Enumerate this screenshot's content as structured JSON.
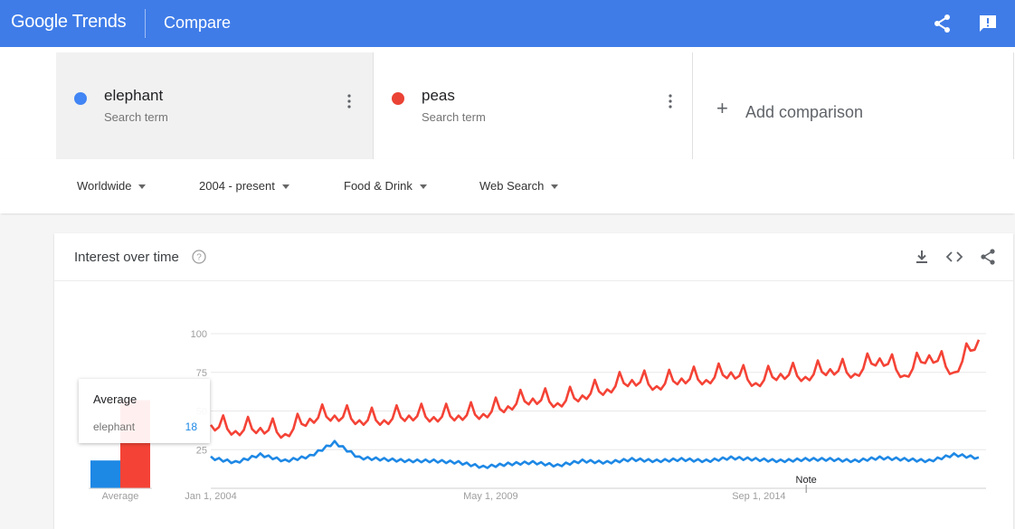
{
  "header": {
    "logo": "Google Trends",
    "title": "Compare",
    "share_icon": "share-icon",
    "feedback_icon": "feedback-icon"
  },
  "terms": [
    {
      "name": "elephant",
      "subtitle": "Search term",
      "color": "#4285f4"
    },
    {
      "name": "peas",
      "subtitle": "Search term",
      "color": "#ea4335"
    }
  ],
  "add_comparison": {
    "label": "Add comparison",
    "icon": "plus-icon"
  },
  "filters": {
    "region": "Worldwide",
    "time": "2004 - present",
    "category": "Food & Drink",
    "search_type": "Web Search"
  },
  "card": {
    "title": "Interest over time",
    "icons": [
      "help-icon",
      "download-icon",
      "embed-icon",
      "share-icon"
    ]
  },
  "tooltip": {
    "title": "Average",
    "term": "elephant",
    "value": "18"
  },
  "chart_data": {
    "type": "line",
    "yticks": [
      "100",
      "75",
      "50",
      "25"
    ],
    "xticks": [
      "Jan 1, 2004",
      "May 1, 2009",
      "Sep 1, 2014"
    ],
    "ylim": [
      0,
      100
    ],
    "grid": true,
    "annotation": "Note",
    "average_bars": {
      "label": "Average",
      "values": [
        {
          "name": "elephant",
          "value": 18,
          "color": "#1e88e5"
        },
        {
          "name": "peas",
          "value": 57,
          "color": "#f44336"
        }
      ]
    },
    "x": [
      "2004-01",
      "2004-07",
      "2005-01",
      "2005-07",
      "2006-01",
      "2006-07",
      "2007-01",
      "2007-07",
      "2008-01",
      "2008-07",
      "2009-01",
      "2009-07",
      "2010-01",
      "2010-07",
      "2011-01",
      "2011-07",
      "2012-01",
      "2012-07",
      "2013-01",
      "2013-07",
      "2014-01",
      "2014-07",
      "2015-01",
      "2015-07",
      "2016-01",
      "2016-07",
      "2017-01",
      "2017-07",
      "2018-01",
      "2018-07",
      "2019-01",
      "2019-07"
    ],
    "series": [
      {
        "name": "elephant",
        "color": "#1e88e5",
        "values": [
          20,
          17,
          22,
          18,
          21,
          30,
          20,
          19,
          18,
          18,
          17,
          14,
          16,
          17,
          15,
          18,
          17,
          19,
          18,
          19,
          18,
          20,
          19,
          18,
          19,
          19,
          18,
          20,
          19,
          18,
          22,
          20
        ]
      },
      {
        "name": "peas",
        "color": "#f44336",
        "values": [
          41,
          37,
          39,
          35,
          45,
          47,
          44,
          44,
          47,
          46,
          47,
          48,
          53,
          58,
          55,
          60,
          64,
          70,
          66,
          71,
          70,
          75,
          68,
          74,
          72,
          77,
          74,
          84,
          73,
          86,
          75,
          96
        ]
      }
    ]
  }
}
